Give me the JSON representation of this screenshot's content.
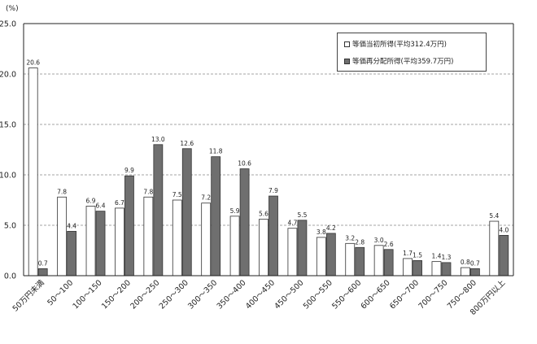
{
  "chart_data": {
    "type": "bar",
    "unit_label": "(%)",
    "ylim": [
      0,
      25
    ],
    "yticks": [
      "0.0",
      "5.0",
      "10.0",
      "15.0",
      "20.0",
      "25.0"
    ],
    "grid": "horizontal-dashed",
    "legend_position": "top-right",
    "categories": [
      "50万円未満",
      "50～100",
      "100～150",
      "150～200",
      "200～250",
      "250～300",
      "300～350",
      "350～400",
      "400～450",
      "450～500",
      "500～550",
      "550～600",
      "600～650",
      "650～700",
      "700～750",
      "750～800",
      "800万円以上"
    ],
    "series": [
      {
        "name": "等価当初所得(平均312.4万円)",
        "color": "#ffffff",
        "values": [
          20.6,
          7.8,
          6.9,
          6.7,
          7.8,
          7.5,
          7.2,
          5.9,
          5.6,
          4.7,
          3.8,
          3.2,
          3.0,
          1.7,
          1.4,
          0.8,
          5.4
        ],
        "labels": [
          "20.6",
          "7.8",
          "6.9",
          "6.7",
          "7.8",
          "7.5",
          "7.2",
          "5.9",
          "5.6",
          "4.7",
          "3.8",
          "3.2",
          "3.0",
          "1.7",
          "1.4",
          "0.8",
          "5.4"
        ]
      },
      {
        "name": "等価再分配所得(平均359.7万円)",
        "color": "#6f6f6f",
        "values": [
          0.7,
          4.4,
          6.4,
          9.9,
          13.0,
          12.6,
          11.8,
          10.6,
          7.9,
          5.5,
          4.2,
          2.8,
          2.6,
          1.5,
          1.3,
          0.7,
          4.0
        ],
        "labels": [
          "0.7",
          "4.4",
          "6.4",
          "9.9",
          "13.0",
          "12.6",
          "11.8",
          "10.6",
          "7.9",
          "5.5",
          "4.2",
          "2.8",
          "2.6",
          "1.5",
          "1.3",
          "0.7",
          "4.0"
        ]
      }
    ]
  }
}
